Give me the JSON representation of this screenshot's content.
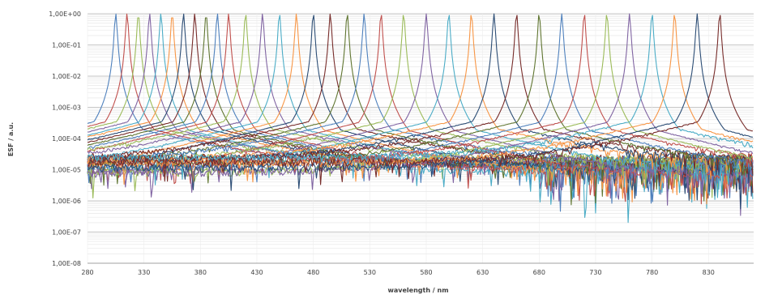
{
  "chart_data": {
    "type": "line",
    "title": "",
    "xlabel": "wavelength / nm",
    "ylabel": "ESF / a.u.",
    "x_ticks": [
      280,
      330,
      380,
      430,
      480,
      530,
      580,
      630,
      680,
      730,
      780,
      830
    ],
    "xlim": [
      280,
      870
    ],
    "y_scale": "log",
    "ylim": [
      1e-08,
      1
    ],
    "y_tick_labels": [
      "1,00E+00",
      "1,00E-01",
      "1,00E-02",
      "1,00E-03",
      "1,00E-04",
      "1,00E-05",
      "1,00E-06",
      "1,00E-07",
      "1,00E-08"
    ],
    "grid": "horizontal major and minor",
    "legend": "none",
    "peak_wavelengths_nm": [
      305,
      315,
      325,
      335,
      345,
      355,
      365,
      375,
      385,
      395,
      405,
      420,
      435,
      450,
      465,
      480,
      495,
      510,
      525,
      540,
      560,
      580,
      600,
      620,
      640,
      660,
      680,
      700,
      720,
      740,
      760,
      780,
      800,
      820,
      840
    ],
    "peak_value": 1.0,
    "approx_background_level": 1e-05,
    "series_colors": [
      "#4f81bd",
      "#c0504d",
      "#9bbb59",
      "#8064a2",
      "#4bacc6",
      "#f79646",
      "#2c4d75",
      "#772c2a",
      "#5f7530"
    ]
  }
}
